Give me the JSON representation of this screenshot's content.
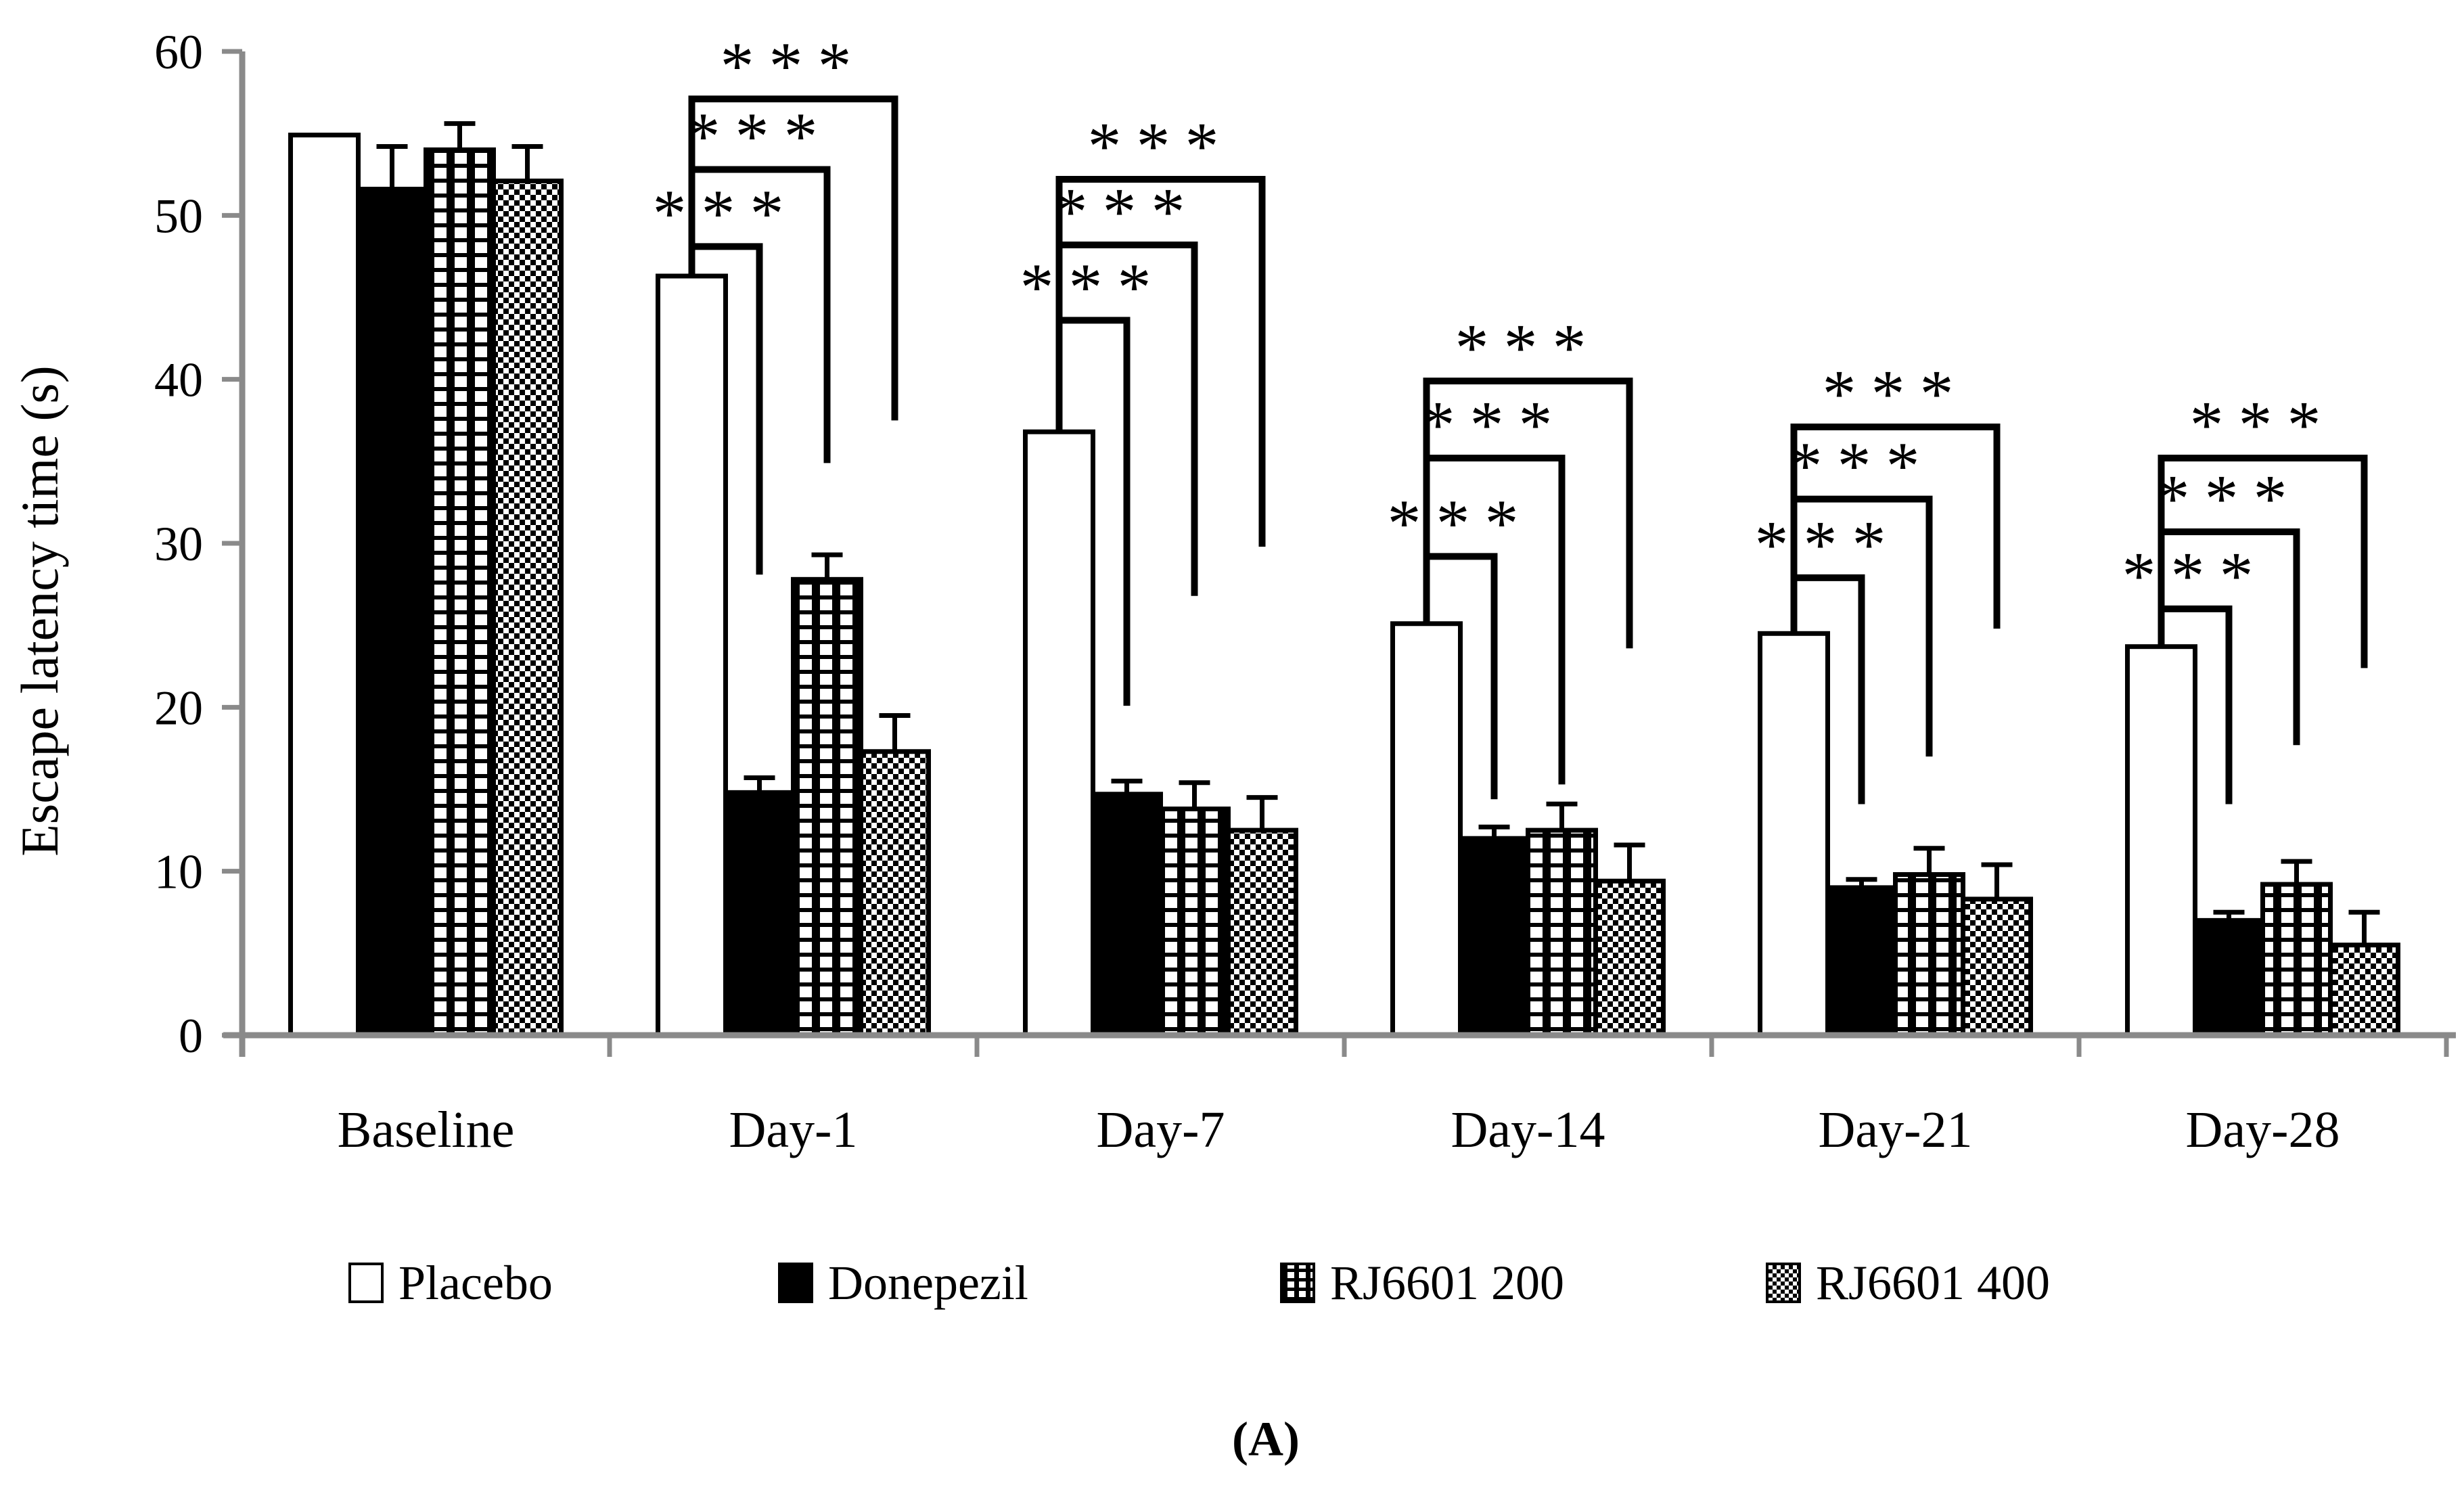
{
  "figure": {
    "caption": "(A)"
  },
  "colors": {
    "axis": "#8a8a8a",
    "ink": "#000000",
    "background": "#ffffff"
  },
  "chart_data": {
    "type": "bar",
    "title": "",
    "xlabel": "",
    "ylabel": "Escape latency time (s)",
    "ylim": [
      0,
      60
    ],
    "yticks": [
      0,
      10,
      20,
      30,
      40,
      50,
      60
    ],
    "grid": false,
    "legend_position": "bottom",
    "categories": [
      "Baseline",
      "Day-1",
      "Day-7",
      "Day-14",
      "Day-21",
      "Day-28"
    ],
    "series": [
      {
        "name": "Placebo",
        "pattern": "white",
        "values": [
          54.9,
          46.3,
          36.8,
          25.1,
          24.5,
          23.7
        ],
        "errors": [
          0,
          0,
          0,
          0,
          0,
          0
        ]
      },
      {
        "name": "Donepezil",
        "pattern": "solid-black",
        "values": [
          51.6,
          14.8,
          14.7,
          12.0,
          9.0,
          7.0
        ],
        "errors": [
          2.6,
          0.9,
          0.8,
          0.7,
          0.5,
          0.5
        ]
      },
      {
        "name": "RJ6601 200",
        "pattern": "grid",
        "values": [
          54.0,
          27.8,
          13.8,
          12.5,
          9.8,
          9.2
        ],
        "errors": [
          1.6,
          1.5,
          1.6,
          1.6,
          1.6,
          1.4
        ]
      },
      {
        "name": "RJ6601 400",
        "pattern": "checker",
        "values": [
          52.1,
          17.3,
          12.5,
          9.4,
          8.3,
          5.5
        ],
        "errors": [
          2.1,
          2.2,
          2.0,
          2.2,
          2.1,
          2.0
        ]
      }
    ],
    "significance_brackets": [
      {
        "category": "Day-1",
        "from_series": "Placebo",
        "comparisons": [
          {
            "to_series": "Donepezil",
            "label": "***",
            "height": 48.1,
            "drop_to": 28.3
          },
          {
            "to_series": "RJ6601 200",
            "label": "***",
            "height": 52.8,
            "drop_to": 35.1
          },
          {
            "to_series": "RJ6601 400",
            "label": "***",
            "height": 57.1,
            "drop_to": 37.7
          }
        ]
      },
      {
        "category": "Day-7",
        "from_series": "Placebo",
        "comparisons": [
          {
            "to_series": "Donepezil",
            "label": "***",
            "height": 43.6,
            "drop_to": 20.3
          },
          {
            "to_series": "RJ6601 200",
            "label": "***",
            "height": 48.2,
            "drop_to": 27.0
          },
          {
            "to_series": "RJ6601 400",
            "label": "***",
            "height": 52.2,
            "drop_to": 30.0
          }
        ]
      },
      {
        "category": "Day-14",
        "from_series": "Placebo",
        "comparisons": [
          {
            "to_series": "Donepezil",
            "label": "***",
            "height": 29.2,
            "drop_to": 14.6
          },
          {
            "to_series": "RJ6601 200",
            "label": "***",
            "height": 35.2,
            "drop_to": 15.5
          },
          {
            "to_series": "RJ6601 400",
            "label": "***",
            "height": 39.9,
            "drop_to": 23.8
          }
        ]
      },
      {
        "category": "Day-21",
        "from_series": "Placebo",
        "comparisons": [
          {
            "to_series": "Donepezil",
            "label": "***",
            "height": 27.9,
            "drop_to": 14.3
          },
          {
            "to_series": "RJ6601 200",
            "label": "***",
            "height": 32.7,
            "drop_to": 17.2
          },
          {
            "to_series": "RJ6601 400",
            "label": "***",
            "height": 37.1,
            "drop_to": 25.0
          }
        ]
      },
      {
        "category": "Day-28",
        "from_series": "Placebo",
        "comparisons": [
          {
            "to_series": "Donepezil",
            "label": "***",
            "height": 26.0,
            "drop_to": 14.3
          },
          {
            "to_series": "RJ6601 200",
            "label": "***",
            "height": 30.7,
            "drop_to": 17.9
          },
          {
            "to_series": "RJ6601 400",
            "label": "***",
            "height": 35.2,
            "drop_to": 22.6
          }
        ]
      }
    ]
  }
}
